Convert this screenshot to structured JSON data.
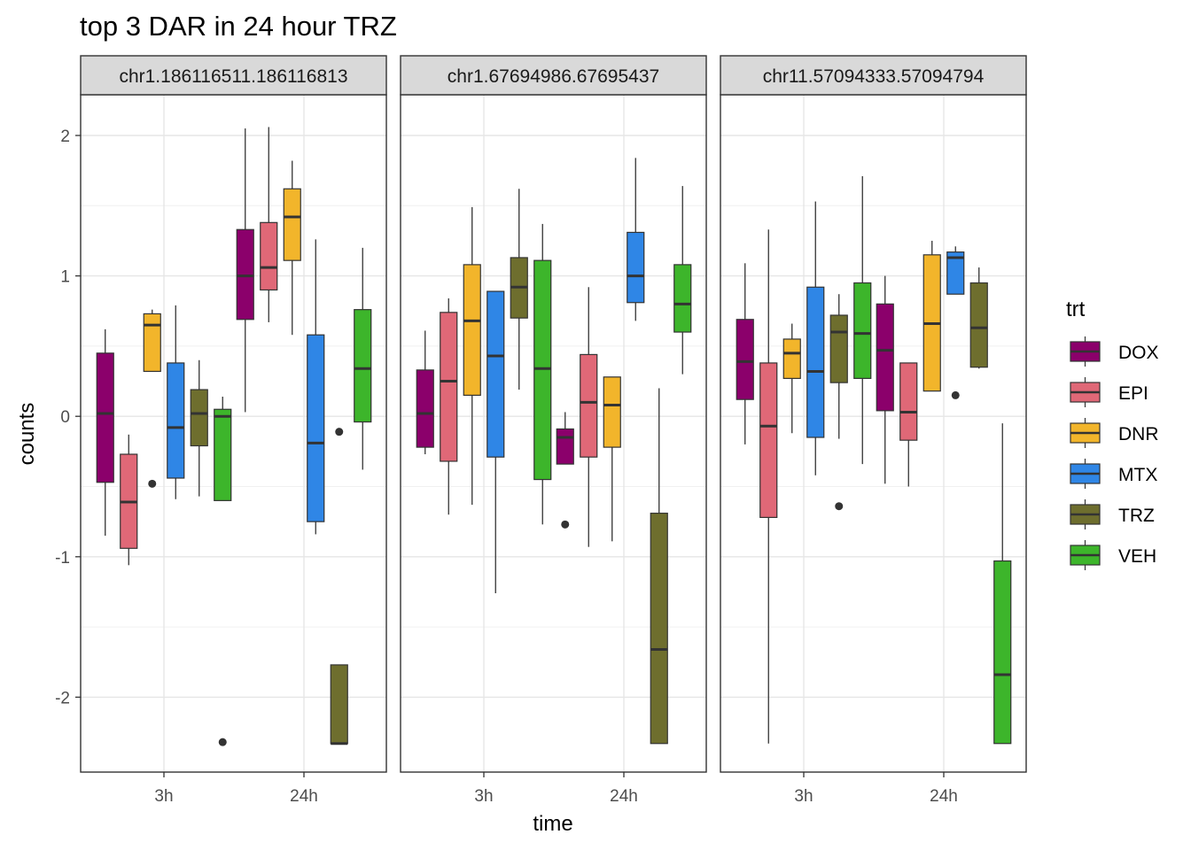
{
  "chart_data": {
    "type": "box",
    "title": "top 3 DAR in 24 hour TRZ",
    "xlabel": "time",
    "ylabel": "counts",
    "ylim": [
      -2.55,
      2.35
    ],
    "yticks": [
      2,
      1,
      0,
      -1,
      -2
    ],
    "ytick_labels": [
      "2",
      "1",
      "0",
      "-1",
      "-2"
    ],
    "categories": [
      "3h",
      "24h"
    ],
    "grid": true,
    "legend": {
      "title": "trt",
      "position": "right",
      "items": [
        {
          "label": "DOX",
          "color": "#8B006B"
        },
        {
          "label": "EPI",
          "color": "#E06877"
        },
        {
          "label": "DNR",
          "color": "#F2B52B"
        },
        {
          "label": "MTX",
          "color": "#2F86E6"
        },
        {
          "label": "TRZ",
          "color": "#6E6E2E"
        },
        {
          "label": "VEH",
          "color": "#3DB52B"
        }
      ]
    },
    "panels": [
      {
        "strip": "chr1.186116511.186116813",
        "groups": [
          {
            "time": "3h",
            "boxes": [
              {
                "trt": "DOX",
                "min": -0.85,
                "q1": -0.47,
                "median": 0.02,
                "q3": 0.45,
                "max": 0.62,
                "outliers": []
              },
              {
                "trt": "EPI",
                "min": -1.06,
                "q1": -0.94,
                "median": -0.61,
                "q3": -0.27,
                "max": -0.13,
                "outliers": []
              },
              {
                "trt": "DNR",
                "min": 0.32,
                "q1": 0.32,
                "median": 0.65,
                "q3": 0.73,
                "max": 0.76,
                "outliers": [
                  -0.48
                ]
              },
              {
                "trt": "MTX",
                "min": -0.59,
                "q1": -0.44,
                "median": -0.08,
                "q3": 0.38,
                "max": 0.79,
                "outliers": []
              },
              {
                "trt": "TRZ",
                "min": -0.57,
                "q1": -0.21,
                "median": 0.02,
                "q3": 0.19,
                "max": 0.4,
                "outliers": []
              },
              {
                "trt": "VEH",
                "min": -0.6,
                "q1": -0.6,
                "median": 0.0,
                "q3": 0.05,
                "max": 0.14,
                "outliers": [
                  -2.32
                ]
              }
            ]
          },
          {
            "time": "24h",
            "boxes": [
              {
                "trt": "DOX",
                "min": 0.03,
                "q1": 0.69,
                "median": 1.0,
                "q3": 1.33,
                "max": 2.05,
                "outliers": []
              },
              {
                "trt": "EPI",
                "min": 0.67,
                "q1": 0.9,
                "median": 1.06,
                "q3": 1.38,
                "max": 2.06,
                "outliers": []
              },
              {
                "trt": "DNR",
                "min": 0.58,
                "q1": 1.11,
                "median": 1.42,
                "q3": 1.62,
                "max": 1.82,
                "outliers": []
              },
              {
                "trt": "MTX",
                "min": -0.84,
                "q1": -0.75,
                "median": -0.19,
                "q3": 0.58,
                "max": 1.26,
                "outliers": []
              },
              {
                "trt": "TRZ",
                "min": -2.33,
                "q1": -2.33,
                "median": -2.33,
                "q3": -1.77,
                "max": -1.77,
                "outliers": [
                  -0.11
                ]
              },
              {
                "trt": "VEH",
                "min": -0.38,
                "q1": -0.04,
                "median": 0.34,
                "q3": 0.76,
                "max": 1.2,
                "outliers": []
              }
            ]
          }
        ]
      },
      {
        "strip": "chr1.67694986.67695437",
        "groups": [
          {
            "time": "3h",
            "boxes": [
              {
                "trt": "DOX",
                "min": -0.27,
                "q1": -0.22,
                "median": 0.02,
                "q3": 0.33,
                "max": 0.61,
                "outliers": []
              },
              {
                "trt": "EPI",
                "min": -0.7,
                "q1": -0.32,
                "median": 0.25,
                "q3": 0.74,
                "max": 0.84,
                "outliers": []
              },
              {
                "trt": "DNR",
                "min": -0.63,
                "q1": 0.15,
                "median": 0.68,
                "q3": 1.08,
                "max": 1.49,
                "outliers": []
              },
              {
                "trt": "MTX",
                "min": -1.26,
                "q1": -0.29,
                "median": 0.43,
                "q3": 0.89,
                "max": 0.89,
                "outliers": []
              },
              {
                "trt": "TRZ",
                "min": 0.19,
                "q1": 0.7,
                "median": 0.92,
                "q3": 1.13,
                "max": 1.62,
                "outliers": []
              },
              {
                "trt": "VEH",
                "min": -0.77,
                "q1": -0.45,
                "median": 0.34,
                "q3": 1.11,
                "max": 1.37,
                "outliers": []
              }
            ]
          },
          {
            "time": "24h",
            "boxes": [
              {
                "trt": "DOX",
                "min": -0.34,
                "q1": -0.34,
                "median": -0.15,
                "q3": -0.09,
                "max": 0.03,
                "outliers": [
                  -0.77
                ]
              },
              {
                "trt": "EPI",
                "min": -0.93,
                "q1": -0.29,
                "median": 0.1,
                "q3": 0.44,
                "max": 0.92,
                "outliers": []
              },
              {
                "trt": "DNR",
                "min": -0.89,
                "q1": -0.22,
                "median": 0.08,
                "q3": 0.28,
                "max": 0.28,
                "outliers": []
              },
              {
                "trt": "MTX",
                "min": 0.68,
                "q1": 0.81,
                "median": 1.0,
                "q3": 1.31,
                "max": 1.84,
                "outliers": []
              },
              {
                "trt": "TRZ",
                "min": -2.33,
                "q1": -2.33,
                "median": -1.66,
                "q3": -0.69,
                "max": 0.2,
                "outliers": []
              },
              {
                "trt": "VEH",
                "min": 0.3,
                "q1": 0.6,
                "median": 0.8,
                "q3": 1.08,
                "max": 1.64,
                "outliers": []
              }
            ]
          }
        ]
      },
      {
        "strip": "chr11.57094333.57094794",
        "groups": [
          {
            "time": "3h",
            "boxes": [
              {
                "trt": "DOX",
                "min": -0.2,
                "q1": 0.12,
                "median": 0.39,
                "q3": 0.69,
                "max": 1.09,
                "outliers": []
              },
              {
                "trt": "EPI",
                "min": -2.33,
                "q1": -0.72,
                "median": -0.07,
                "q3": 0.38,
                "max": 1.33,
                "outliers": []
              },
              {
                "trt": "DNR",
                "min": -0.12,
                "q1": 0.27,
                "median": 0.45,
                "q3": 0.55,
                "max": 0.66,
                "outliers": []
              },
              {
                "trt": "MTX",
                "min": -0.42,
                "q1": -0.15,
                "median": 0.32,
                "q3": 0.92,
                "max": 1.53,
                "outliers": []
              },
              {
                "trt": "TRZ",
                "min": -0.16,
                "q1": 0.24,
                "median": 0.6,
                "q3": 0.72,
                "max": 0.87,
                "outliers": [
                  -0.64
                ]
              },
              {
                "trt": "VEH",
                "min": -0.34,
                "q1": 0.27,
                "median": 0.59,
                "q3": 0.95,
                "max": 1.71,
                "outliers": []
              }
            ]
          },
          {
            "time": "24h",
            "boxes": [
              {
                "trt": "DOX",
                "min": -0.48,
                "q1": 0.04,
                "median": 0.47,
                "q3": 0.8,
                "max": 1.0,
                "outliers": []
              },
              {
                "trt": "EPI",
                "min": -0.5,
                "q1": -0.17,
                "median": 0.03,
                "q3": 0.38,
                "max": 0.38,
                "outliers": []
              },
              {
                "trt": "DNR",
                "min": 0.18,
                "q1": 0.18,
                "median": 0.66,
                "q3": 1.15,
                "max": 1.25,
                "outliers": []
              },
              {
                "trt": "MTX",
                "min": 0.87,
                "q1": 0.87,
                "median": 1.13,
                "q3": 1.17,
                "max": 1.21,
                "outliers": [
                  0.15
                ]
              },
              {
                "trt": "TRZ",
                "min": 0.34,
                "q1": 0.35,
                "median": 0.63,
                "q3": 0.95,
                "max": 1.06,
                "outliers": []
              },
              {
                "trt": "VEH",
                "min": -2.33,
                "q1": -2.33,
                "median": -1.84,
                "q3": -1.03,
                "max": -0.05,
                "outliers": []
              }
            ]
          }
        ]
      }
    ]
  }
}
